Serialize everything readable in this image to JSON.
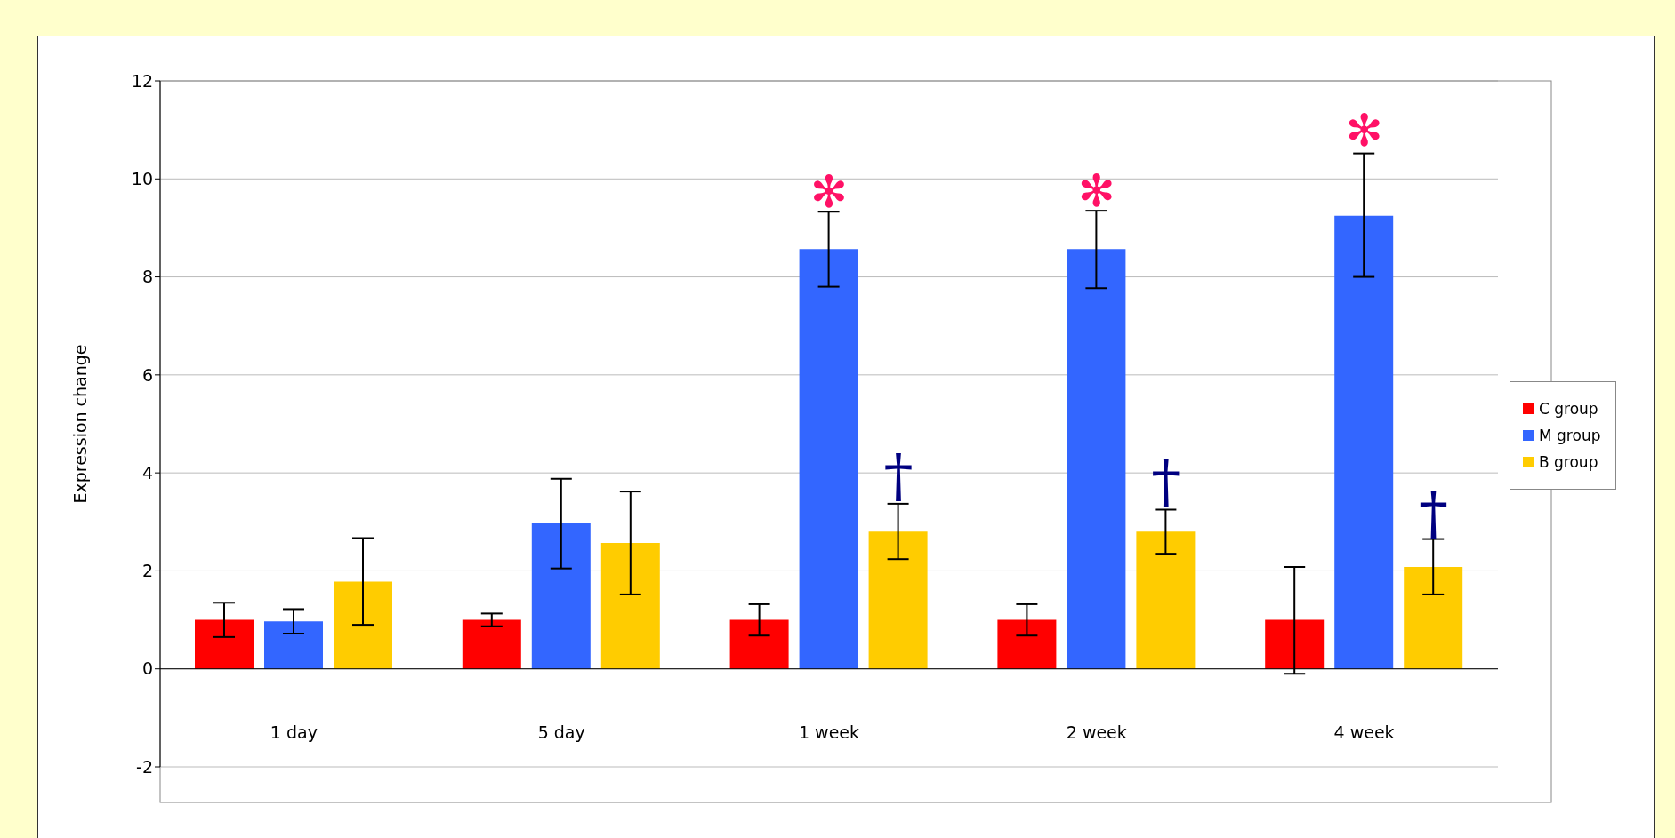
{
  "chart_data": {
    "type": "bar",
    "ylabel": "Expression change",
    "categories": [
      "1 day",
      "5 day",
      "1 week",
      "2 week",
      "4 week"
    ],
    "series": [
      {
        "name": "C group",
        "color": "#ff0000",
        "values": [
          1.0,
          1.0,
          1.0,
          1.0,
          1.0
        ],
        "errors": [
          [
            0.65,
            1.35
          ],
          [
            0.87,
            1.13
          ],
          [
            0.68,
            1.32
          ],
          [
            0.68,
            1.32
          ],
          [
            -0.1,
            2.08
          ]
        ]
      },
      {
        "name": "M group",
        "color": "#3366ff",
        "values": [
          0.97,
          2.97,
          8.57,
          8.57,
          9.25
        ],
        "errors": [
          [
            0.72,
            1.22
          ],
          [
            2.05,
            3.88
          ],
          [
            7.8,
            9.33
          ],
          [
            7.77,
            9.35
          ],
          [
            8.0,
            10.52
          ]
        ]
      },
      {
        "name": "B group",
        "color": "#ffcc00",
        "values": [
          1.78,
          2.57,
          2.8,
          2.8,
          2.08
        ],
        "errors": [
          [
            0.9,
            2.67
          ],
          [
            1.52,
            3.62
          ],
          [
            2.24,
            3.37
          ],
          [
            2.35,
            3.25
          ],
          [
            1.52,
            2.65
          ]
        ]
      }
    ],
    "ylim": [
      -2,
      12
    ],
    "yticks": [
      -2,
      0,
      2,
      4,
      6,
      8,
      10,
      12
    ],
    "grid": "y",
    "legend": "right",
    "annotations": [
      "✻",
      "✻",
      "✻",
      "†",
      "†",
      "†"
    ]
  }
}
